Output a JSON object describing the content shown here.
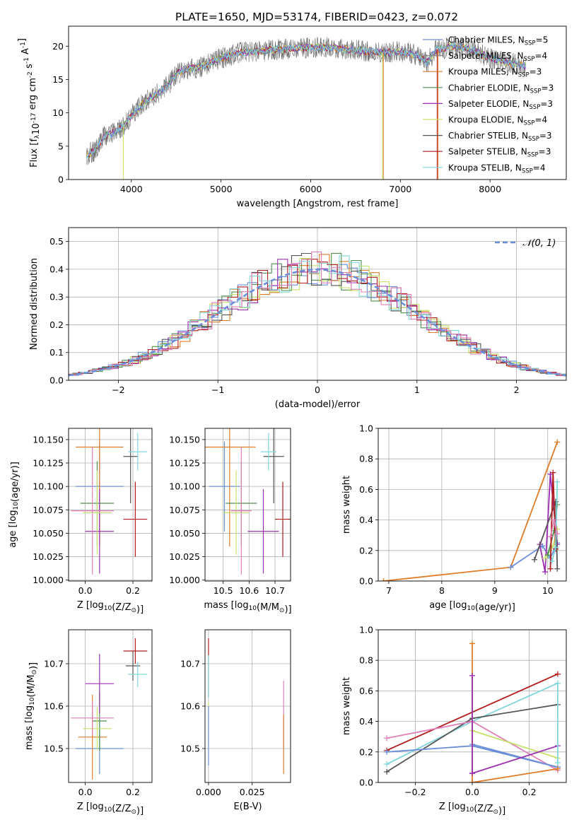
{
  "figure": {
    "title": "PLATE=1650, MJD=53174, FIBERID=0423, z=0.072"
  },
  "colors": {
    "Chabrier MILES": "#6a8fd8",
    "Salpeter MILES": "#8a8a8a",
    "Kroupa MILES": "#e07b26",
    "Chabrier ELODIE": "#4f8f4f",
    "Salpeter ELODIE": "#9b2fb0",
    "Kroupa ELODIE": "#c6e26a",
    "Chabrier STELIB": "#555555",
    "Salpeter STELIB": "#b11c1c",
    "Kroupa STELIB": "#7fd6dc",
    "pink": "#e07fb8"
  },
  "chart_data": [
    {
      "id": "spectrum",
      "type": "line",
      "title": "PLATE=1650, MJD=53174, FIBERID=0423, z=0.072",
      "xlabel": "wavelength [Angstrom, rest frame]",
      "ylabel": "Flux [f_λ10^-17 erg cm^-2 s^-1 A^-1]",
      "xlim": [
        3300,
        8850
      ],
      "ylim": [
        0,
        23
      ],
      "xticks": [
        4000,
        5000,
        6000,
        7000,
        8000
      ],
      "yticks": [
        0,
        5,
        10,
        15,
        20
      ],
      "grid": false,
      "legend_position": "right",
      "legend": [
        {
          "label": "Chabrier MILES, N",
          "sub": "SSP",
          "tail": "=5",
          "color": "Chabrier MILES"
        },
        {
          "label": "Salpeter MILES, N",
          "sub": "SSP",
          "tail": "=4",
          "color": "Salpeter MILES"
        },
        {
          "label": "Kroupa MILES, N",
          "sub": "SSP",
          "tail": "=3",
          "color": "Kroupa MILES"
        },
        {
          "label": "Chabrier ELODIE, N",
          "sub": "SSP",
          "tail": "=3",
          "color": "Chabrier ELODIE"
        },
        {
          "label": "Salpeter ELODIE, N",
          "sub": "SSP",
          "tail": "=3",
          "color": "Salpeter ELODIE"
        },
        {
          "label": "Kroupa ELODIE, N",
          "sub": "SSP",
          "tail": "=4",
          "color": "Kroupa ELODIE"
        },
        {
          "label": "Chabrier STELIB, N",
          "sub": "SSP",
          "tail": "=3",
          "color": "Chabrier STELIB"
        },
        {
          "label": "Salpeter STELIB, N",
          "sub": "SSP",
          "tail": "=3",
          "color": "Salpeter STELIB"
        },
        {
          "label": "Kroupa STELIB, N",
          "sub": "SSP",
          "tail": "=4",
          "color": "Kroupa STELIB"
        }
      ],
      "continuum_wavelength": [
        3500,
        3600,
        3700,
        3800,
        3900,
        4000,
        4100,
        4200,
        4300,
        4400,
        4500,
        4600,
        4800,
        5000,
        5200,
        5400,
        5600,
        5800,
        6000,
        6200,
        6400,
        6600,
        6800,
        7000,
        7200,
        7300,
        7400,
        7600,
        7800,
        8000,
        8200,
        8400
      ],
      "continuum_flux": [
        3.5,
        4.5,
        6.5,
        7.0,
        8.0,
        9.5,
        11.0,
        12.2,
        13.0,
        14.0,
        15.8,
        16.5,
        17.0,
        18.2,
        19.0,
        19.2,
        19.5,
        19.6,
        19.8,
        19.8,
        19.5,
        19.3,
        19.0,
        19.2,
        18.6,
        17.5,
        19.5,
        20.0,
        19.5,
        18.2,
        17.5,
        17.0
      ]
    },
    {
      "id": "residuals",
      "type": "histogram",
      "xlabel": "(data-model)/error",
      "ylabel": "Normed distribution",
      "xlim": [
        -2.5,
        2.5
      ],
      "ylim": [
        0,
        0.55
      ],
      "xticks": [
        -2,
        -1,
        0,
        1,
        2
      ],
      "yticks": [
        0.0,
        0.1,
        0.2,
        0.3,
        0.4,
        0.5
      ],
      "grid": true,
      "legend_position": "top-right",
      "reference": {
        "label": "𝒩(0, 1)",
        "mean": 0,
        "sigma": 1,
        "style": "dashed",
        "color": "Chabrier MILES"
      },
      "bin_width": 0.1,
      "series_colors": [
        "Chabrier MILES",
        "Kroupa MILES",
        "Chabrier ELODIE",
        "Salpeter ELODIE",
        "Kroupa ELODIE",
        "Chabrier STELIB",
        "Salpeter STELIB",
        "Kroupa STELIB",
        "pink"
      ],
      "representative_heights": [
        0.02,
        0.03,
        0.04,
        0.05,
        0.07,
        0.1,
        0.12,
        0.16,
        0.2,
        0.24,
        0.27,
        0.3,
        0.33,
        0.36,
        0.38,
        0.4,
        0.42,
        0.4,
        0.38,
        0.33,
        0.27,
        0.21,
        0.15,
        0.1,
        0.07,
        0.05,
        0.03,
        0.02
      ]
    },
    {
      "id": "age-vs-Z",
      "type": "errorbar",
      "xlabel": "Z [log10(Z/Z⊙)]",
      "ylabel": "age  [log10(age/yr)]",
      "xlim": [
        -0.07,
        0.28
      ],
      "ylim": [
        9.999,
        10.162
      ],
      "xticks": [
        0.0,
        0.2
      ],
      "yticks": [
        10.0,
        10.025,
        10.05,
        10.075,
        10.1,
        10.125,
        10.15
      ],
      "grid": true,
      "points": [
        {
          "x": 0.06,
          "xerr": 0.1,
          "y": 10.1,
          "yerr": 0.048,
          "color": "Chabrier MILES"
        },
        {
          "x": 0.06,
          "xerr": 0.1,
          "y": 10.142,
          "yerr": 0.106,
          "color": "Kroupa MILES"
        },
        {
          "x": 0.05,
          "xerr": 0.07,
          "y": 10.082,
          "yerr": 0.045,
          "color": "Chabrier ELODIE"
        },
        {
          "x": 0.06,
          "xerr": 0.06,
          "y": 10.052,
          "yerr": 0.045,
          "color": "Salpeter ELODIE"
        },
        {
          "x": 0.05,
          "xerr": 0.06,
          "y": 10.072,
          "yerr": 0.045,
          "color": "Kroupa ELODIE"
        },
        {
          "x": 0.19,
          "xerr": 0.03,
          "y": 10.132,
          "yerr": 0.05,
          "color": "Chabrier STELIB"
        },
        {
          "x": 0.21,
          "xerr": 0.05,
          "y": 10.065,
          "yerr": 0.04,
          "color": "Salpeter STELIB"
        },
        {
          "x": 0.22,
          "xerr": 0.04,
          "y": 10.137,
          "yerr": 0.02,
          "color": "Kroupa STELIB"
        },
        {
          "x": 0.03,
          "xerr": 0.09,
          "y": 10.074,
          "yerr": 0.068,
          "color": "pink"
        }
      ]
    },
    {
      "id": "age-vs-mass",
      "type": "errorbar",
      "xlabel": "mass [log10(M/M⊙)]",
      "ylabel": "",
      "xlim": [
        10.43,
        10.76
      ],
      "ylim": [
        9.999,
        10.162
      ],
      "xticks": [
        10.5,
        10.6,
        10.7
      ],
      "yticks": [
        10.0,
        10.025,
        10.05,
        10.075,
        10.1,
        10.125,
        10.15
      ],
      "grid": true,
      "points": [
        {
          "x": 10.505,
          "xerr": 0.06,
          "y": 10.1,
          "yerr": 0.048,
          "color": "Chabrier MILES"
        },
        {
          "x": 10.525,
          "xerr": 0.1,
          "y": 10.142,
          "yerr": 0.106,
          "color": "Kroupa MILES"
        },
        {
          "x": 10.57,
          "xerr": 0.06,
          "y": 10.082,
          "yerr": 0.045,
          "color": "Chabrier ELODIE"
        },
        {
          "x": 10.655,
          "xerr": 0.06,
          "y": 10.052,
          "yerr": 0.045,
          "color": "Salpeter ELODIE"
        },
        {
          "x": 10.55,
          "xerr": 0.05,
          "y": 10.072,
          "yerr": 0.045,
          "color": "Kroupa ELODIE"
        },
        {
          "x": 10.695,
          "xerr": 0.04,
          "y": 10.132,
          "yerr": 0.05,
          "color": "Chabrier STELIB"
        },
        {
          "x": 10.73,
          "xerr": 0.03,
          "y": 10.065,
          "yerr": 0.04,
          "color": "Salpeter STELIB"
        },
        {
          "x": 10.675,
          "xerr": 0.03,
          "y": 10.137,
          "yerr": 0.02,
          "color": "Kroupa STELIB"
        },
        {
          "x": 10.57,
          "xerr": 0.04,
          "y": 10.074,
          "yerr": 0.068,
          "color": "pink"
        }
      ]
    },
    {
      "id": "weight-vs-age",
      "type": "line",
      "xlabel": "age  [log10(age/yr)]",
      "ylabel": "mass weight",
      "xlim": [
        6.8,
        10.35
      ],
      "ylim": [
        0,
        1.0
      ],
      "xticks": [
        7,
        8,
        9,
        10
      ],
      "yticks": [
        0.0,
        0.2,
        0.4,
        0.6,
        0.8,
        1.0
      ],
      "grid": true,
      "series": [
        {
          "color": "Kroupa MILES",
          "x": [
            6.9,
            9.3,
            10.18
          ],
          "y": [
            0.0,
            0.09,
            0.91
          ]
        },
        {
          "color": "Chabrier MILES",
          "x": [
            9.3,
            9.9,
            10.05,
            10.18
          ],
          "y": [
            0.09,
            0.23,
            0.15,
            0.25
          ]
        },
        {
          "color": "Salpeter ELODIE",
          "x": [
            9.85,
            9.95,
            10.05,
            10.18
          ],
          "y": [
            0.24,
            0.06,
            0.7,
            0.24
          ]
        },
        {
          "color": "Kroupa ELODIE",
          "x": [
            9.95,
            10.1,
            10.18
          ],
          "y": [
            0.15,
            0.23,
            0.34
          ]
        },
        {
          "color": "Chabrier ELODIE",
          "x": [
            10.0,
            10.12,
            10.18
          ],
          "y": [
            0.17,
            0.33,
            0.5
          ]
        },
        {
          "color": "Chabrier STELIB",
          "x": [
            9.75,
            10.15,
            10.18
          ],
          "y": [
            0.14,
            0.52,
            0.08
          ]
        },
        {
          "color": "Salpeter STELIB",
          "x": [
            10.05,
            10.1,
            10.15
          ],
          "y": [
            0.08,
            0.71,
            0.21
          ]
        },
        {
          "color": "Kroupa STELIB",
          "x": [
            10.08,
            10.15,
            10.18
          ],
          "y": [
            0.13,
            0.22,
            0.65
          ]
        },
        {
          "color": "pink",
          "x": [
            10.05,
            10.12,
            10.18
          ],
          "y": [
            0.29,
            0.4,
            0.31
          ]
        }
      ]
    },
    {
      "id": "mass-vs-Z",
      "type": "errorbar",
      "xlabel": "Z [log10(Z/Z⊙)]",
      "ylabel": "mass [log10(M/M⊙)]",
      "xlim": [
        -0.07,
        0.28
      ],
      "ylim": [
        10.42,
        10.78
      ],
      "xticks": [
        0.0,
        0.2
      ],
      "yticks": [
        10.5,
        10.6,
        10.7
      ],
      "grid": true,
      "points": [
        {
          "x": 0.06,
          "xerr": 0.1,
          "y": 10.5,
          "yerr": 0.06,
          "color": "Chabrier MILES"
        },
        {
          "x": 0.03,
          "xerr": 0.06,
          "y": 10.527,
          "yerr": 0.1,
          "color": "Kroupa MILES"
        },
        {
          "x": 0.06,
          "xerr": 0.03,
          "y": 10.565,
          "yerr": 0.07,
          "color": "Chabrier ELODIE"
        },
        {
          "x": 0.06,
          "xerr": 0.06,
          "y": 10.653,
          "yerr": 0.07,
          "color": "Salpeter ELODIE"
        },
        {
          "x": 0.05,
          "xerr": 0.06,
          "y": 10.547,
          "yerr": 0.05,
          "color": "Kroupa ELODIE"
        },
        {
          "x": 0.2,
          "xerr": 0.03,
          "y": 10.695,
          "yerr": 0.035,
          "color": "Chabrier STELIB"
        },
        {
          "x": 0.21,
          "xerr": 0.05,
          "y": 10.73,
          "yerr": 0.03,
          "color": "Salpeter STELIB"
        },
        {
          "x": 0.22,
          "xerr": 0.04,
          "y": 10.675,
          "yerr": 0.03,
          "color": "Kroupa STELIB"
        },
        {
          "x": 0.03,
          "xerr": 0.09,
          "y": 10.572,
          "yerr": 0.04,
          "color": "pink"
        }
      ]
    },
    {
      "id": "mass-vs-EBV",
      "type": "errorbar",
      "xlabel": "E(B-V)",
      "ylabel": "",
      "xlim": [
        -0.002,
        0.047
      ],
      "ylim": [
        10.42,
        10.78
      ],
      "xticks": [
        0.0,
        0.025
      ],
      "tick_labels": [
        "0.000",
        "0.025"
      ],
      "yticks": [
        10.5,
        10.6,
        10.7
      ],
      "grid": true,
      "points": [
        {
          "x": 0.0,
          "xerr": 0.0,
          "y": 10.69,
          "yerr": 0.07,
          "color": "Salpeter STELIB"
        },
        {
          "x": 0.0,
          "xerr": 0.0,
          "y": 10.67,
          "yerr": 0.05,
          "color": "Kroupa STELIB"
        },
        {
          "x": 0.0,
          "xerr": 0.0,
          "y": 10.55,
          "yerr": 0.06,
          "color": "Kroupa ELODIE"
        },
        {
          "x": 0.0,
          "xerr": 0.0,
          "y": 10.53,
          "yerr": 0.07,
          "color": "Chabrier MILES"
        },
        {
          "x": 0.043,
          "xerr": 0.0,
          "y": 10.58,
          "yerr": 0.08,
          "color": "pink"
        },
        {
          "x": 0.043,
          "xerr": 0.0,
          "y": 10.51,
          "yerr": 0.07,
          "color": "Kroupa MILES"
        }
      ]
    },
    {
      "id": "weight-vs-Z",
      "type": "line",
      "xlabel": "Z [log10(Z/Z⊙)]",
      "ylabel": "mass weight",
      "xlim": [
        -0.33,
        0.33
      ],
      "ylim": [
        0,
        1.0
      ],
      "xticks": [
        -0.2,
        0.0,
        0.2
      ],
      "yticks": [
        0.0,
        0.2,
        0.4,
        0.6,
        0.8,
        1.0
      ],
      "grid": true,
      "series": [
        {
          "color": "Salpeter STELIB",
          "x": [
            -0.3,
            0.3
          ],
          "y": [
            0.21,
            0.71
          ]
        },
        {
          "color": "Kroupa STELIB",
          "x": [
            -0.3,
            0.0,
            0.3
          ],
          "y": [
            0.12,
            0.4,
            0.65
          ]
        },
        {
          "color": "Chabrier STELIB",
          "x": [
            -0.3,
            0.0,
            0.3
          ],
          "y": [
            0.07,
            0.42,
            0.51
          ]
        },
        {
          "color": "pink",
          "x": [
            -0.3,
            0.0,
            0.3
          ],
          "y": [
            0.29,
            0.4,
            0.08
          ]
        },
        {
          "color": "Chabrier MILES",
          "x": [
            -0.3,
            0.0,
            0.3
          ],
          "y": [
            0.2,
            0.24,
            0.1
          ]
        },
        {
          "color": "Chabrier MILES",
          "x": [
            0.0,
            0.3
          ],
          "y": [
            0.25,
            0.1
          ]
        },
        {
          "color": "Kroupa ELODIE",
          "x": [
            0.0,
            0.3
          ],
          "y": [
            0.34,
            0.16
          ]
        },
        {
          "color": "Salpeter ELODIE",
          "x": [
            0.0,
            0.3
          ],
          "y": [
            0.06,
            0.24
          ]
        },
        {
          "color": "Kroupa MILES",
          "x": [
            0.0,
            0.3
          ],
          "y": [
            0.0,
            0.09
          ]
        },
        {
          "color": "Kroupa MILES",
          "x": [
            0.0,
            0.0
          ],
          "y": [
            0.0,
            0.91
          ]
        },
        {
          "color": "Salpeter ELODIE",
          "x": [
            0.0,
            0.0
          ],
          "y": [
            0.06,
            0.7
          ]
        },
        {
          "color": "Kroupa STELIB",
          "x": [
            0.3,
            0.3
          ],
          "y": [
            0.13,
            0.65
          ]
        }
      ]
    }
  ]
}
